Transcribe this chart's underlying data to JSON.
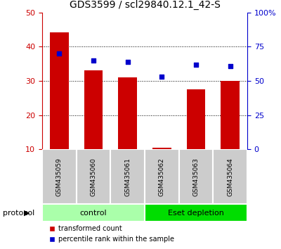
{
  "title": "GDS3599 / scl29840.12.1_42-S",
  "samples": [
    "GSM435059",
    "GSM435060",
    "GSM435061",
    "GSM435062",
    "GSM435063",
    "GSM435064"
  ],
  "bar_values": [
    44.2,
    33.0,
    31.0,
    10.5,
    27.5,
    30.0
  ],
  "percentile_values": [
    70,
    65,
    64,
    53,
    62,
    61
  ],
  "bar_color": "#cc0000",
  "dot_color": "#0000cc",
  "ylim_left": [
    10,
    50
  ],
  "ylim_right": [
    0,
    100
  ],
  "yticks_left": [
    10,
    20,
    30,
    40,
    50
  ],
  "yticks_right": [
    0,
    25,
    50,
    75,
    100
  ],
  "ytick_labels_right": [
    "0",
    "25",
    "50",
    "75",
    "100%"
  ],
  "groups": [
    {
      "label": "control",
      "start": 0,
      "end": 3,
      "color": "#aaffaa"
    },
    {
      "label": "Eset depletion",
      "start": 3,
      "end": 6,
      "color": "#00dd00"
    }
  ],
  "group_label": "protocol",
  "legend_items": [
    {
      "label": "transformed count",
      "color": "#cc0000"
    },
    {
      "label": "percentile rank within the sample",
      "color": "#0000cc"
    }
  ],
  "title_fontsize": 10,
  "tick_fontsize": 8,
  "bar_width": 0.55,
  "sample_bg_color": "#cccccc",
  "bg_color": "#ffffff"
}
